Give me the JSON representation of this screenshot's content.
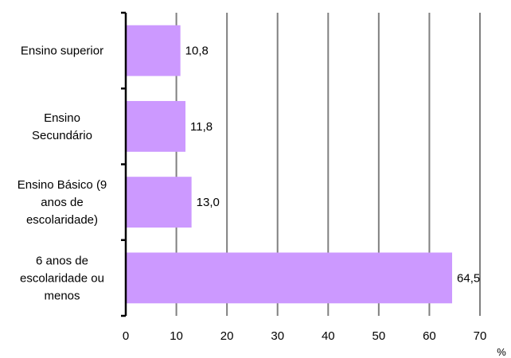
{
  "chart_data": {
    "type": "bar",
    "orientation": "horizontal",
    "categories": [
      [
        "Ensino superior"
      ],
      [
        "Ensino",
        "Secundário"
      ],
      [
        "Ensino Básico (9",
        "anos de",
        "escolaridade)"
      ],
      [
        "6 anos de",
        "escolaridade ou",
        "menos"
      ]
    ],
    "values": [
      10.8,
      11.8,
      13.0,
      64.5
    ],
    "value_labels": [
      "10,8",
      "11,8",
      "13,0",
      "64,5"
    ],
    "x_ticks": [
      "0",
      "10",
      "20",
      "30",
      "40",
      "50",
      "60",
      "70"
    ],
    "xlim": [
      0,
      70
    ],
    "x_unit": "%",
    "grid": "vertical",
    "legend": "none",
    "colors": {
      "bar": "#cc99ff",
      "grid": "#808080",
      "axis": "#000000"
    }
  }
}
